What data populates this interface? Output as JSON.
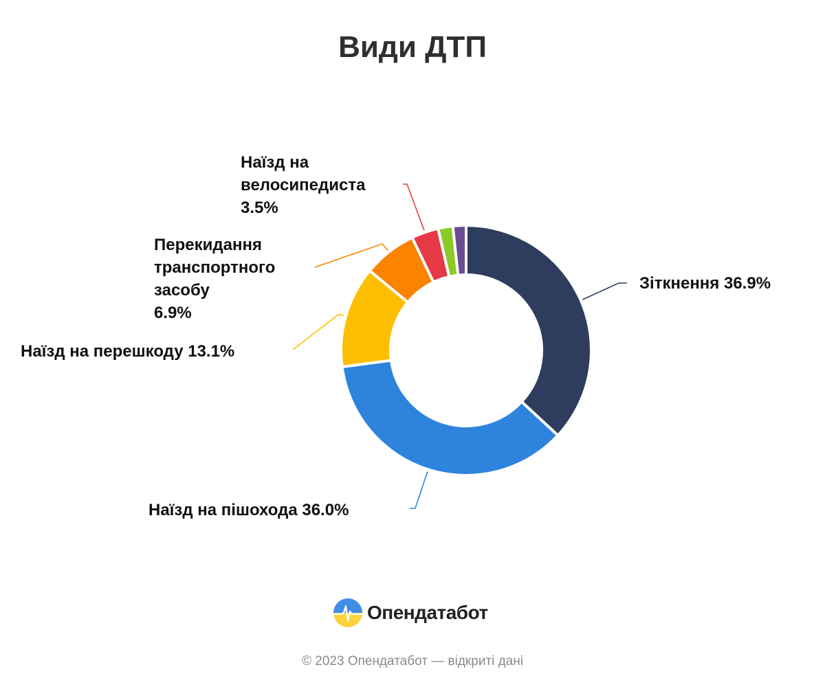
{
  "chart_data": {
    "type": "pie",
    "title": "Види ДТП",
    "donut": true,
    "start": "top, clockwise",
    "slices": [
      {
        "label": "Зіткнення",
        "value": 36.9,
        "value_label": "36.9%",
        "color": "#2e3d5e"
      },
      {
        "label": "Наїзд на пішохода",
        "value": 36.0,
        "value_label": "36.0%",
        "color": "#2e83dc"
      },
      {
        "label": "Наїзд на перешкоду",
        "value": 13.1,
        "value_label": "13.1%",
        "color": "#fdbe00"
      },
      {
        "label": "Перекидання транспортного засобу",
        "value": 6.9,
        "value_label": "6.9%",
        "color": "#fa8300"
      },
      {
        "label": "Наїзд на велосипедиста",
        "value": 3.5,
        "value_label": "3.5%",
        "color": "#e63946"
      },
      {
        "label": "",
        "value": 1.9,
        "value_label": "",
        "color": "#8ac926"
      },
      {
        "label": "",
        "value": 1.7,
        "value_label": "",
        "color": "#6a4c93"
      }
    ]
  },
  "brand": {
    "name": "Опендатабот"
  },
  "footer": {
    "text": "© 2023 Опендатабот — відкриті дані"
  }
}
